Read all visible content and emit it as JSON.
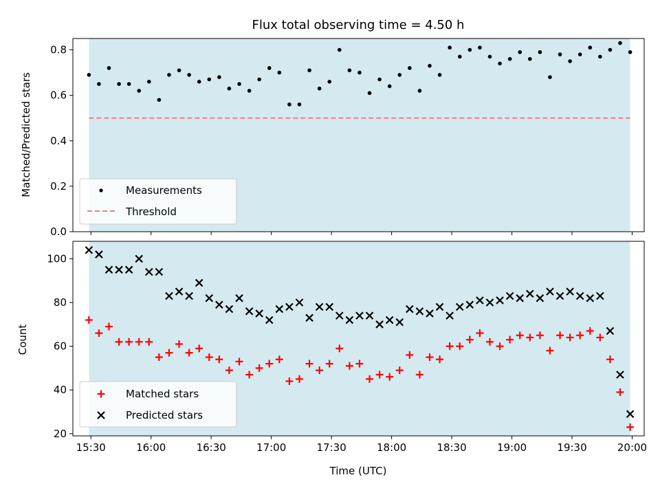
{
  "chart_data": [
    {
      "type": "scatter",
      "title": "Flux total observing time = 4.50 h",
      "ylabel": "Matched/Predicted stars",
      "xlabel": "",
      "ylim": [
        0,
        0.85
      ],
      "yticks": [
        "0.0",
        "0.2",
        "0.4",
        "0.6",
        "0.8"
      ],
      "ytick_values": [
        0,
        0.2,
        0.4,
        0.6,
        0.8
      ],
      "xlim": [
        "15:21",
        "20:06"
      ],
      "shaded_span": [
        "15:29",
        "19:59"
      ],
      "shade_color": "#d4eaf0",
      "threshold": 0.5,
      "threshold_color": "#f07f7f",
      "legend_position": "lower-left",
      "legend": [
        "Measurements",
        "Threshold"
      ],
      "series": [
        {
          "name": "Measurements",
          "color": "#000000",
          "x": [
            "15:29",
            "15:34",
            "15:39",
            "15:44",
            "15:49",
            "15:54",
            "15:59",
            "16:04",
            "16:09",
            "16:14",
            "16:19",
            "16:24",
            "16:29",
            "16:34",
            "16:39",
            "16:44",
            "16:49",
            "16:54",
            "16:59",
            "17:04",
            "17:09",
            "17:14",
            "17:19",
            "17:24",
            "17:29",
            "17:34",
            "17:39",
            "17:44",
            "17:49",
            "17:54",
            "17:59",
            "18:04",
            "18:09",
            "18:14",
            "18:19",
            "18:24",
            "18:29",
            "18:34",
            "18:39",
            "18:44",
            "18:49",
            "18:54",
            "18:59",
            "19:04",
            "19:09",
            "19:14",
            "19:19",
            "19:24",
            "19:29",
            "19:34",
            "19:39",
            "19:44",
            "19:49",
            "19:54",
            "19:59"
          ],
          "y": [
            0.69,
            0.65,
            0.72,
            0.65,
            0.65,
            0.62,
            0.66,
            0.58,
            0.69,
            0.71,
            0.69,
            0.66,
            0.67,
            0.68,
            0.63,
            0.65,
            0.62,
            0.67,
            0.72,
            0.7,
            0.56,
            0.56,
            0.71,
            0.63,
            0.66,
            0.8,
            0.71,
            0.7,
            0.61,
            0.67,
            0.64,
            0.69,
            0.72,
            0.62,
            0.73,
            0.69,
            0.81,
            0.77,
            0.8,
            0.81,
            0.77,
            0.74,
            0.76,
            0.79,
            0.76,
            0.79,
            0.68,
            0.78,
            0.75,
            0.78,
            0.81,
            0.77,
            0.8,
            0.83,
            0.79
          ]
        }
      ]
    },
    {
      "type": "scatter",
      "title": "",
      "ylabel": "Count",
      "xlabel": "Time (UTC)",
      "ylim": [
        19,
        108
      ],
      "yticks": [
        "20",
        "40",
        "60",
        "80",
        "100"
      ],
      "ytick_values": [
        20,
        40,
        60,
        80,
        100
      ],
      "xlim": [
        "15:21",
        "20:06"
      ],
      "xticks": [
        "15:30",
        "16:00",
        "16:30",
        "17:00",
        "17:30",
        "18:00",
        "18:30",
        "19:00",
        "19:30",
        "20:00"
      ],
      "shaded_span": [
        "15:29",
        "19:59"
      ],
      "shade_color": "#d4eaf0",
      "legend_position": "lower-left",
      "legend": [
        "Matched stars",
        "Predicted stars"
      ],
      "series": [
        {
          "name": "Matched stars",
          "marker": "+",
          "color": "#ff0000",
          "x": [
            "15:29",
            "15:34",
            "15:39",
            "15:44",
            "15:49",
            "15:54",
            "15:59",
            "16:04",
            "16:09",
            "16:14",
            "16:19",
            "16:24",
            "16:29",
            "16:34",
            "16:39",
            "16:44",
            "16:49",
            "16:54",
            "16:59",
            "17:04",
            "17:09",
            "17:14",
            "17:19",
            "17:24",
            "17:29",
            "17:34",
            "17:39",
            "17:44",
            "17:49",
            "17:54",
            "17:59",
            "18:04",
            "18:09",
            "18:14",
            "18:19",
            "18:24",
            "18:29",
            "18:34",
            "18:39",
            "18:44",
            "18:49",
            "18:54",
            "18:59",
            "19:04",
            "19:09",
            "19:14",
            "19:19",
            "19:24",
            "19:29",
            "19:34",
            "19:39",
            "19:44",
            "19:49",
            "19:54",
            "19:59"
          ],
          "y": [
            72,
            66,
            69,
            62,
            62,
            62,
            62,
            55,
            57,
            61,
            57,
            59,
            55,
            54,
            49,
            53,
            47,
            50,
            52,
            54,
            44,
            45,
            52,
            49,
            52,
            59,
            51,
            52,
            45,
            47,
            46,
            49,
            56,
            47,
            55,
            54,
            60,
            60,
            63,
            66,
            62,
            60,
            63,
            65,
            64,
            65,
            58,
            65,
            64,
            65,
            67,
            64,
            54,
            39,
            23
          ]
        },
        {
          "name": "Predicted stars",
          "marker": "x",
          "color": "#000000",
          "x": [
            "15:29",
            "15:34",
            "15:39",
            "15:44",
            "15:49",
            "15:54",
            "15:59",
            "16:04",
            "16:09",
            "16:14",
            "16:19",
            "16:24",
            "16:29",
            "16:34",
            "16:39",
            "16:44",
            "16:49",
            "16:54",
            "16:59",
            "17:04",
            "17:09",
            "17:14",
            "17:19",
            "17:24",
            "17:29",
            "17:34",
            "17:39",
            "17:44",
            "17:49",
            "17:54",
            "17:59",
            "18:04",
            "18:09",
            "18:14",
            "18:19",
            "18:24",
            "18:29",
            "18:34",
            "18:39",
            "18:44",
            "18:49",
            "18:54",
            "18:59",
            "19:04",
            "19:09",
            "19:14",
            "19:19",
            "19:24",
            "19:29",
            "19:34",
            "19:39",
            "19:44",
            "19:49",
            "19:54",
            "19:59"
          ],
          "y": [
            104,
            102,
            95,
            95,
            95,
            100,
            94,
            94,
            83,
            85,
            83,
            89,
            82,
            79,
            77,
            82,
            76,
            75,
            72,
            77,
            78,
            80,
            73,
            78,
            78,
            74,
            72,
            74,
            74,
            70,
            72,
            71,
            77,
            76,
            75,
            78,
            74,
            78,
            79,
            81,
            80,
            81,
            83,
            82,
            84,
            82,
            85,
            83,
            85,
            83,
            82,
            83,
            67,
            47,
            29
          ]
        }
      ]
    }
  ]
}
